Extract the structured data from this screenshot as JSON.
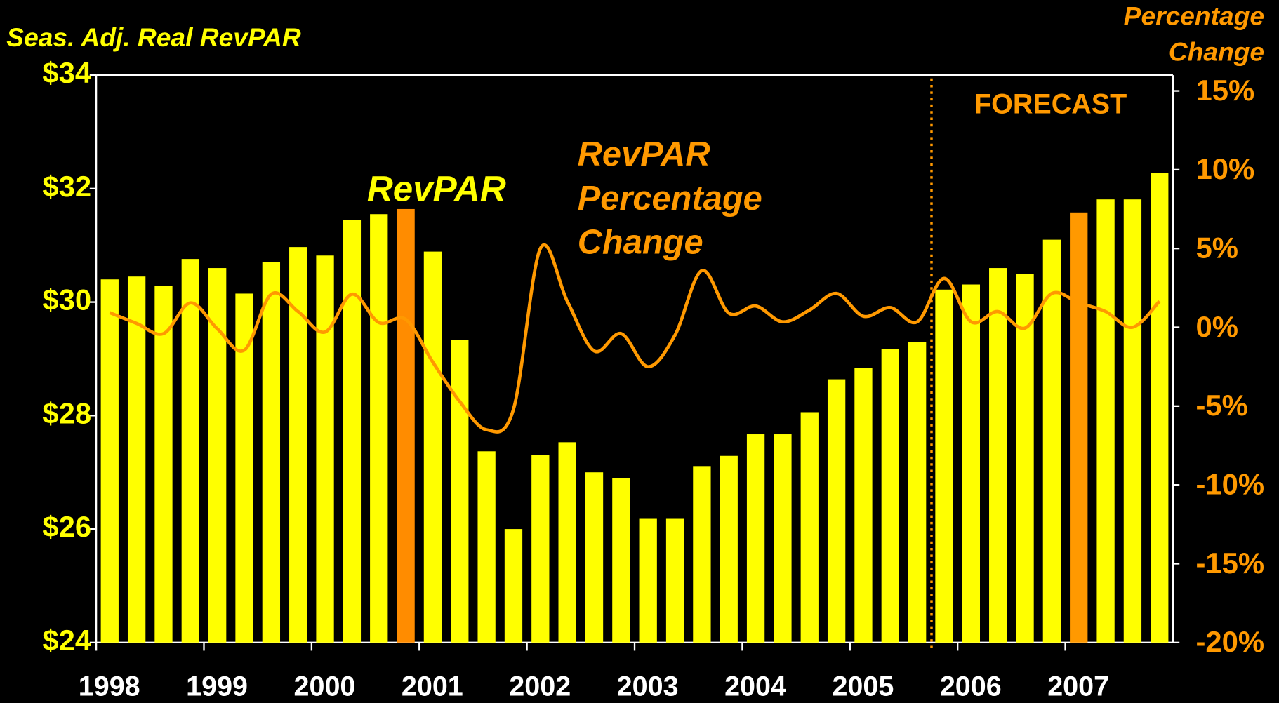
{
  "chart_data": {
    "type": "bar",
    "ylabel": "Seas. Adj. Real RevPAR",
    "y2label": [
      "Percentage",
      "Change"
    ],
    "annotations": {
      "bars": "RevPAR",
      "line": [
        "RevPAR",
        "Percentage",
        "Change"
      ],
      "forecast": "FORECAST"
    },
    "categories": [
      "1998",
      null,
      null,
      null,
      "1999",
      null,
      null,
      null,
      "2000",
      null,
      null,
      null,
      "2001",
      null,
      null,
      null,
      "2002",
      null,
      null,
      null,
      "2003",
      null,
      null,
      null,
      "2004",
      null,
      null,
      null,
      "2005",
      null,
      null,
      null,
      "2006",
      null,
      null,
      null,
      "2007",
      null,
      null,
      null
    ],
    "series": [
      {
        "name": "RevPAR",
        "type": "bar",
        "colors": [
          "#ffff00",
          "#ffff00",
          "#ffff00",
          "#ffff00",
          "#ffff00",
          "#ffff00",
          "#ffff00",
          "#ffff00",
          "#ffff00",
          "#ffff00",
          "#ffff00",
          "#ff8c00",
          "#ffff00",
          "#ffff00",
          "#ffff00",
          "#ffff00",
          "#ffff00",
          "#ffff00",
          "#ffff00",
          "#ffff00",
          "#ffff00",
          "#ffff00",
          "#ffff00",
          "#ffff00",
          "#ffff00",
          "#ffff00",
          "#ffff00",
          "#ffff00",
          "#ffff00",
          "#ffff00",
          "#ffff00",
          "#ffff00",
          "#ffff00",
          "#ffff00",
          "#ffff00",
          "#ffff00",
          "#ff9900",
          "#ffff00",
          "#ffff00",
          "#ffff00"
        ],
        "values": [
          30.4,
          30.45,
          30.28,
          30.76,
          30.6,
          30.15,
          30.7,
          30.97,
          30.82,
          31.45,
          31.55,
          31.64,
          30.89,
          29.33,
          27.37,
          26.0,
          27.31,
          27.53,
          27.0,
          26.9,
          26.18,
          26.18,
          27.11,
          27.29,
          27.67,
          27.67,
          28.06,
          28.64,
          28.84,
          29.17,
          29.29,
          30.22,
          30.31,
          30.6,
          30.5,
          31.1,
          31.58,
          31.81,
          31.81,
          32.27
        ]
      },
      {
        "name": "RevPAR Percentage Change",
        "type": "line",
        "axis": "y2",
        "color": "#ff9900",
        "values": [
          0.93,
          0.25,
          -0.4,
          1.55,
          -0.1,
          -1.45,
          2.1,
          1.0,
          -0.3,
          2.1,
          0.3,
          0.5,
          -2.2,
          -4.7,
          -6.5,
          -5.2,
          5.0,
          1.65,
          -1.5,
          -0.4,
          -2.5,
          -0.5,
          3.6,
          0.9,
          1.35,
          0.35,
          1.1,
          2.15,
          0.7,
          1.25,
          0.35,
          3.1,
          0.35,
          1.0,
          -0.05,
          2.15,
          1.55,
          1.0,
          0.0,
          1.65
        ]
      }
    ],
    "ylim": [
      24,
      34
    ],
    "yticks": [
      {
        "value": 24,
        "label": "$24"
      },
      {
        "value": 26,
        "label": "$26"
      },
      {
        "value": 28,
        "label": "$28"
      },
      {
        "value": 30,
        "label": "$30"
      },
      {
        "value": 32,
        "label": "$32"
      },
      {
        "value": 34,
        "label": "$34"
      }
    ],
    "y2lim": [
      -20,
      16
    ],
    "y2ticks": [
      {
        "value": -20,
        "label": "-20%"
      },
      {
        "value": -15,
        "label": "-15%"
      },
      {
        "value": -10,
        "label": "-10%"
      },
      {
        "value": -5,
        "label": "-5%"
      },
      {
        "value": 0,
        "label": "0%"
      },
      {
        "value": 5,
        "label": "5%"
      },
      {
        "value": 10,
        "label": "10%"
      },
      {
        "value": 15,
        "label": "15%"
      }
    ],
    "grid": false
  }
}
